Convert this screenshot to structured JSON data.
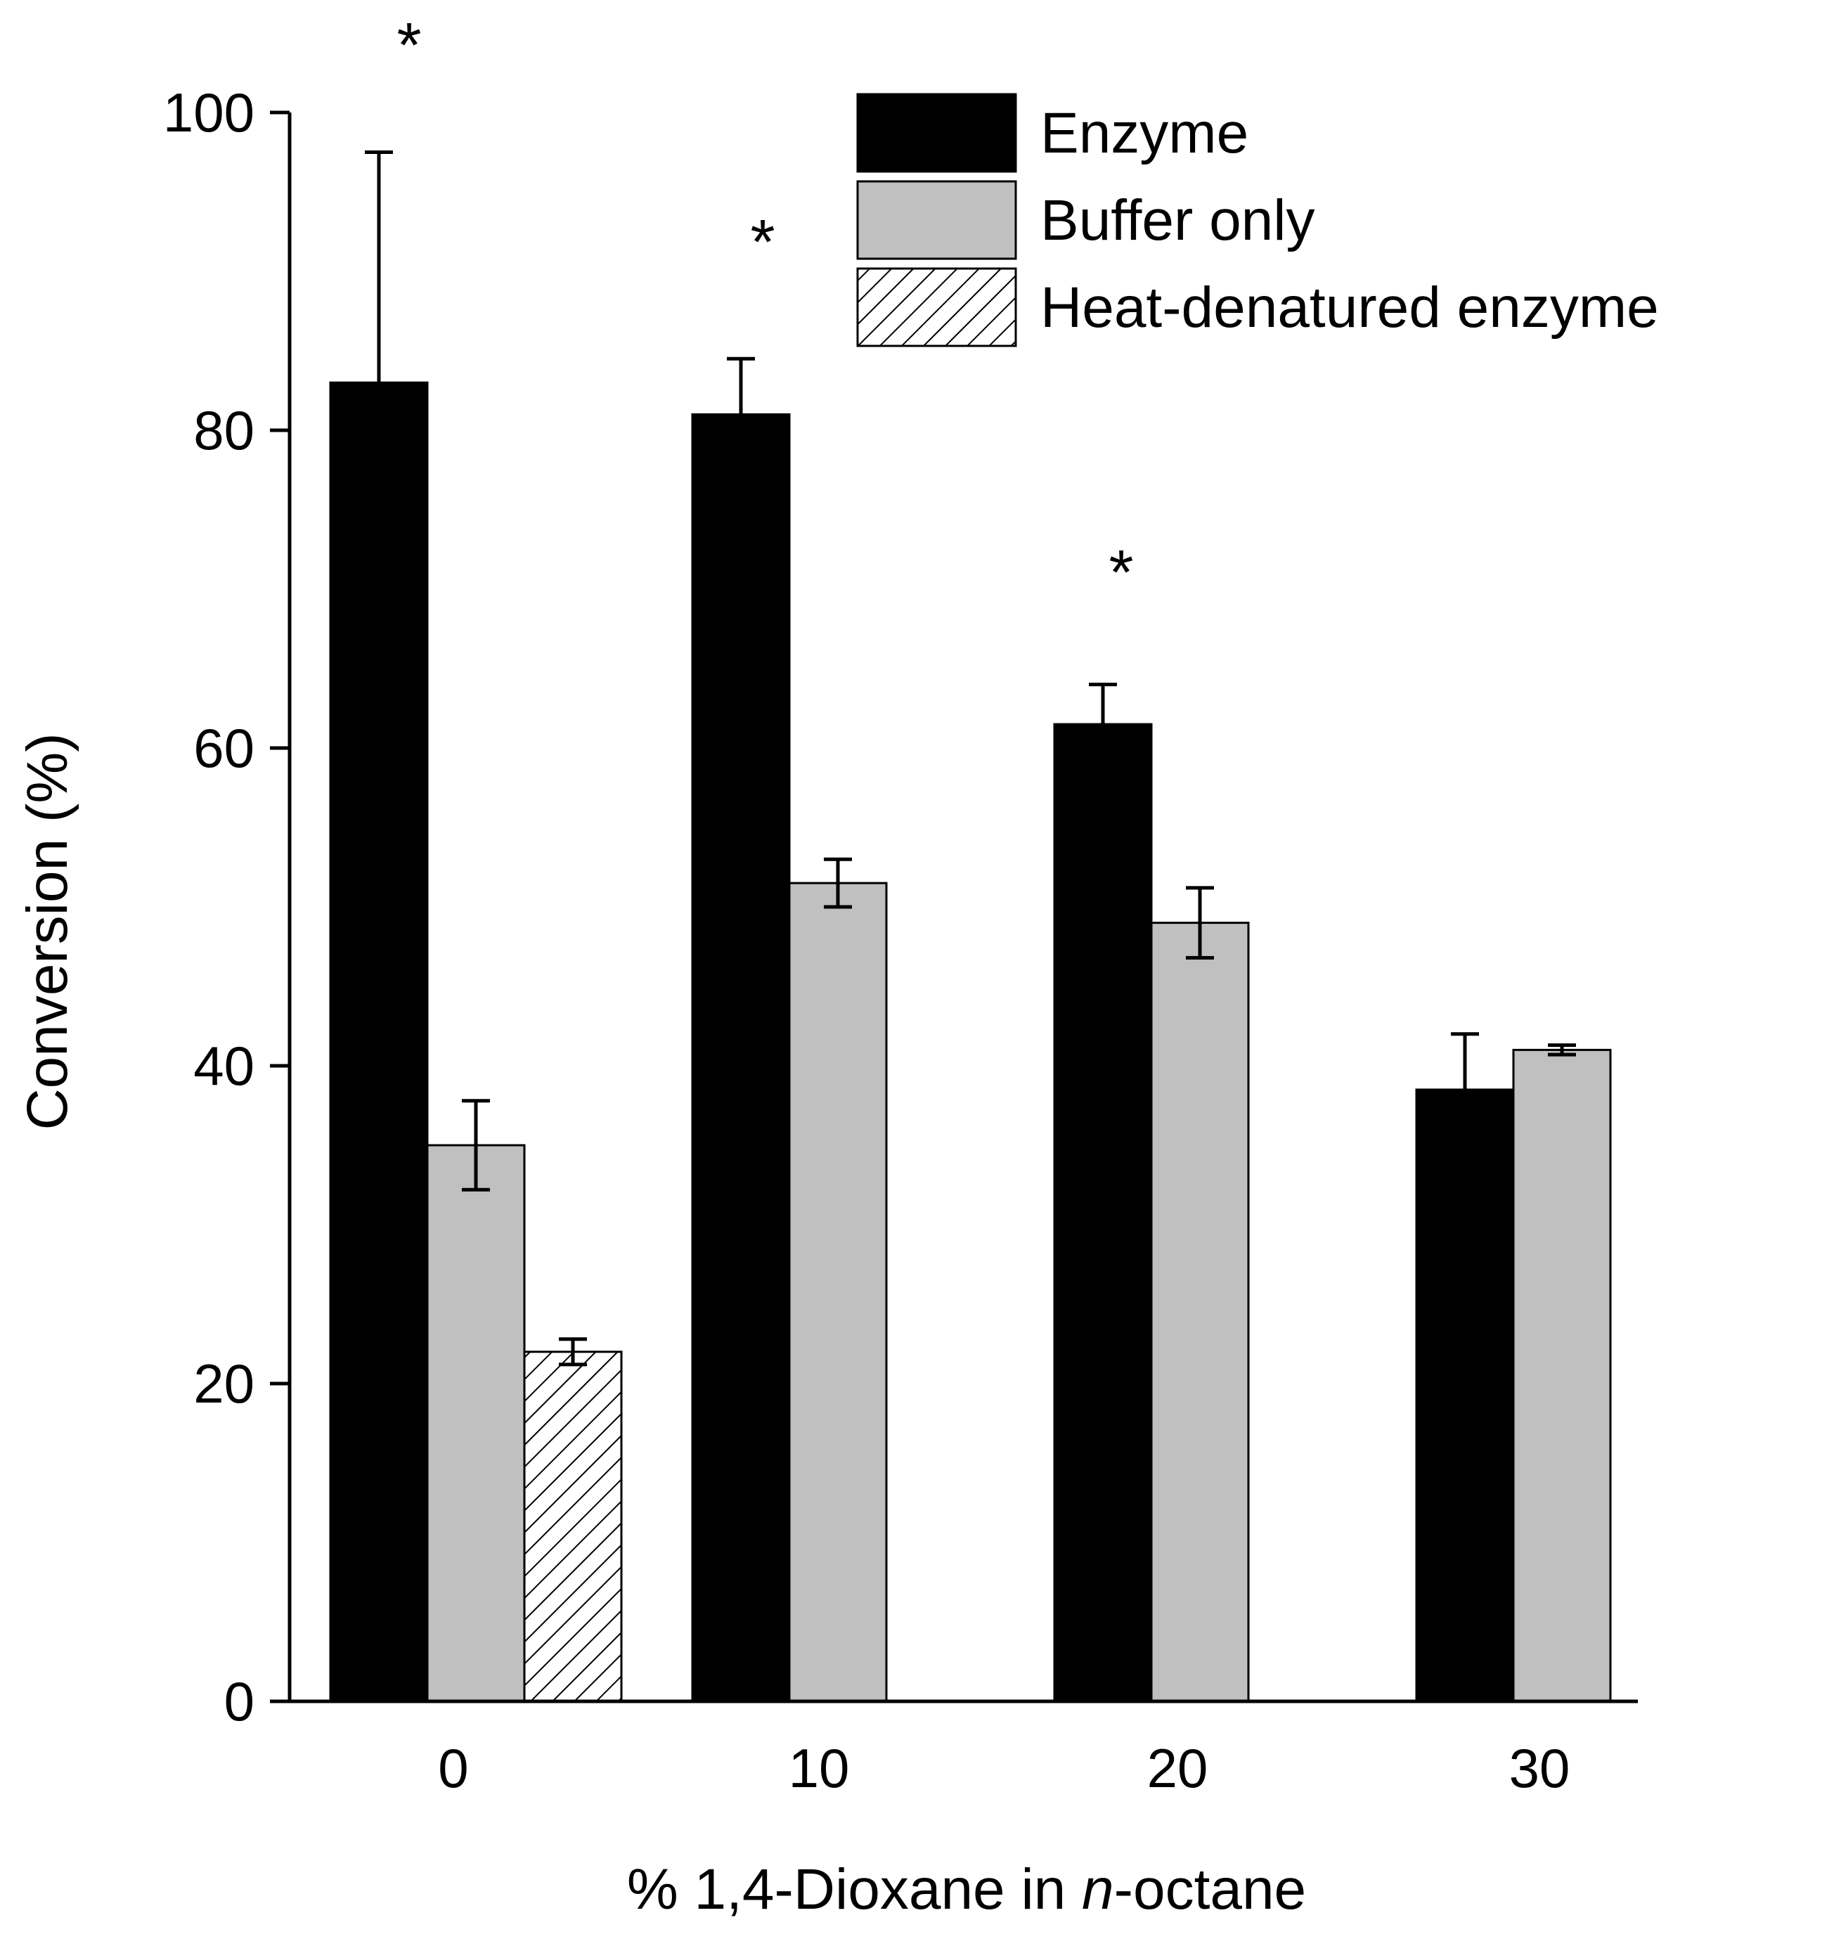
{
  "chart_data": {
    "type": "bar",
    "title": "",
    "xlabel_prefix": "% 1,4-Dioxane in ",
    "xlabel_italic": "n",
    "xlabel_suffix": "-octane",
    "ylabel": "Conversion (%)",
    "categories": [
      "0",
      "10",
      "20",
      "30"
    ],
    "ylim": [
      0,
      100
    ],
    "yticks": [
      0,
      20,
      40,
      60,
      80,
      100
    ],
    "grid": false,
    "legend_position": "top-right",
    "series": [
      {
        "name": "Enzyme",
        "fill": "#000000",
        "pattern": "solid",
        "values": [
          83,
          81,
          61.5,
          38.5
        ],
        "errors": [
          14.5,
          3.5,
          2.5,
          3.5
        ]
      },
      {
        "name": "Buffer only",
        "fill": "#c0c0c0",
        "pattern": "solid",
        "values": [
          35,
          51.5,
          49,
          41
        ],
        "errors": [
          2.8,
          1.5,
          2.2,
          0.3
        ]
      },
      {
        "name": "Heat-denatured enzyme",
        "fill": "#ffffff",
        "pattern": "hatch",
        "values": [
          22,
          null,
          null,
          null
        ],
        "errors": [
          0.8,
          null,
          null,
          null
        ]
      }
    ],
    "annotations": [
      {
        "text": "*",
        "category": "0",
        "y": 103
      },
      {
        "text": "*",
        "category": "10",
        "y": 91
      },
      {
        "text": "*",
        "category": "20",
        "y": 70
      }
    ]
  }
}
